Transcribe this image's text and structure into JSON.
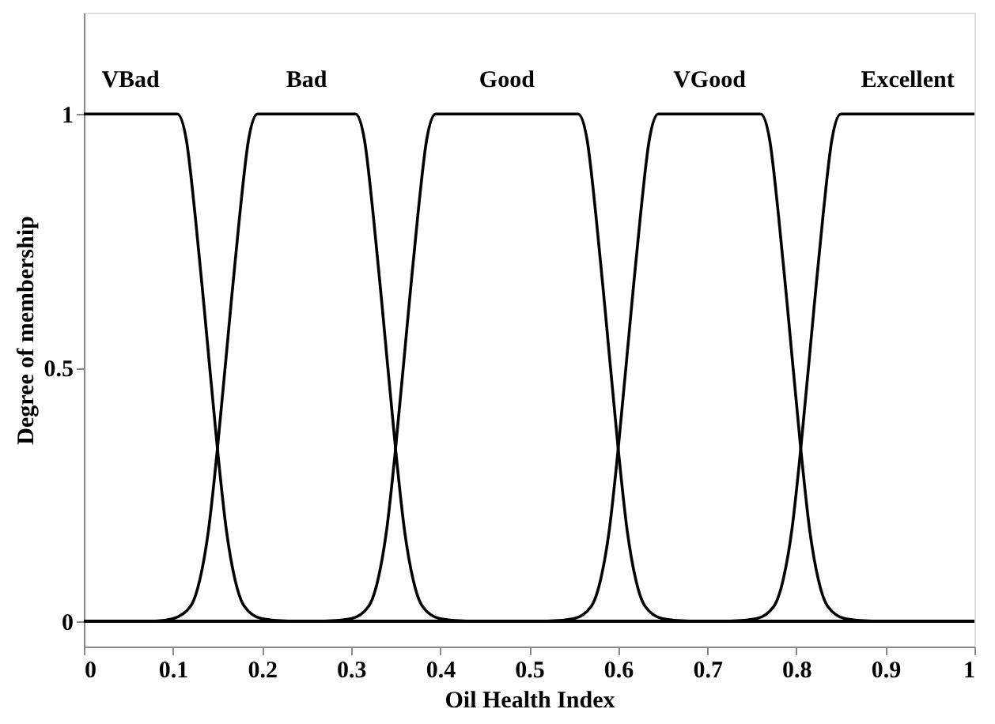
{
  "chart_data": {
    "type": "line",
    "xlabel": "Oil Health Index",
    "ylabel": "Degree of membership",
    "xlim": [
      0,
      1
    ],
    "ylim": [
      -0.05,
      1.2
    ],
    "xticks": [
      0,
      0.1,
      0.2,
      0.3,
      0.4,
      0.5,
      0.6,
      0.7,
      0.8,
      0.9,
      1
    ],
    "yticks": [
      0,
      0.5,
      1
    ],
    "grid": false,
    "marker": "none",
    "line_style": "solid",
    "series": [
      {
        "name": "VBad",
        "color": "#000000",
        "x": [
          0,
          0.105,
          0.115,
          0.125,
          0.135,
          0.15,
          0.16,
          0.17,
          0.18,
          0.2,
          0.23,
          1
        ],
        "values": [
          1,
          1,
          0.95,
          0.8,
          0.62,
          0.34,
          0.18,
          0.08,
          0.03,
          0.005,
          0,
          0
        ]
      },
      {
        "name": "Bad",
        "color": "#000000",
        "x": [
          0,
          0.08,
          0.1,
          0.12,
          0.13,
          0.14,
          0.15,
          0.165,
          0.175,
          0.185,
          0.195,
          0.305,
          0.315,
          0.325,
          0.335,
          0.35,
          0.36,
          0.37,
          0.38,
          0.4,
          0.43,
          1
        ],
        "values": [
          0,
          0,
          0.005,
          0.03,
          0.08,
          0.18,
          0.34,
          0.62,
          0.8,
          0.95,
          1,
          1,
          0.95,
          0.8,
          0.62,
          0.34,
          0.18,
          0.08,
          0.03,
          0.005,
          0,
          0
        ]
      },
      {
        "name": "Good",
        "color": "#000000",
        "x": [
          0,
          0.27,
          0.3,
          0.32,
          0.33,
          0.34,
          0.35,
          0.365,
          0.375,
          0.385,
          0.395,
          0.555,
          0.565,
          0.575,
          0.585,
          0.6,
          0.61,
          0.62,
          0.63,
          0.65,
          0.68,
          1
        ],
        "values": [
          0,
          0,
          0.005,
          0.03,
          0.08,
          0.18,
          0.34,
          0.62,
          0.8,
          0.95,
          1,
          1,
          0.95,
          0.8,
          0.62,
          0.34,
          0.18,
          0.08,
          0.03,
          0.005,
          0,
          0
        ]
      },
      {
        "name": "VGood",
        "color": "#000000",
        "x": [
          0,
          0.52,
          0.55,
          0.57,
          0.58,
          0.59,
          0.6,
          0.615,
          0.625,
          0.635,
          0.645,
          0.76,
          0.77,
          0.78,
          0.79,
          0.805,
          0.815,
          0.825,
          0.835,
          0.855,
          0.885,
          1
        ],
        "values": [
          0,
          0,
          0.005,
          0.03,
          0.08,
          0.18,
          0.34,
          0.62,
          0.8,
          0.95,
          1,
          1,
          0.95,
          0.8,
          0.62,
          0.34,
          0.18,
          0.08,
          0.03,
          0.005,
          0,
          0
        ]
      },
      {
        "name": "Excellent",
        "color": "#000000",
        "x": [
          0,
          0.725,
          0.755,
          0.775,
          0.785,
          0.795,
          0.805,
          0.82,
          0.83,
          0.84,
          0.85,
          1
        ],
        "values": [
          0,
          0,
          0.005,
          0.03,
          0.08,
          0.18,
          0.34,
          0.62,
          0.8,
          0.95,
          1,
          1
        ]
      }
    ]
  }
}
